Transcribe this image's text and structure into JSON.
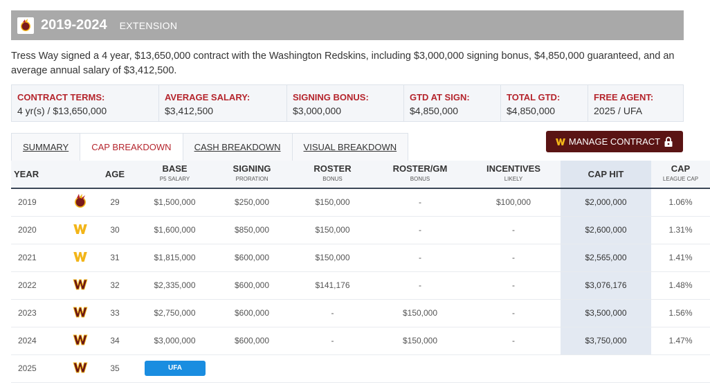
{
  "header": {
    "years": "2019-2024",
    "type": "EXTENSION"
  },
  "summary": "Tress Way signed a 4 year, $13,650,000 contract with the Washington Redskins, including $3,000,000 signing bonus, $4,850,000 guaranteed, and an average annual salary of $3,412,500.",
  "terms": [
    {
      "label": "CONTRACT TERMS:",
      "value": "4 yr(s) / $13,650,000"
    },
    {
      "label": "AVERAGE SALARY:",
      "value": "$3,412,500"
    },
    {
      "label": "SIGNING BONUS:",
      "value": "$3,000,000"
    },
    {
      "label": "GTD AT SIGN:",
      "value": "$4,850,000"
    },
    {
      "label": "TOTAL GTD:",
      "value": "$4,850,000"
    },
    {
      "label": "FREE AGENT:",
      "value": "2025 / UFA"
    }
  ],
  "tabs": [
    "SUMMARY",
    "CAP BREAKDOWN",
    "CASH BREAKDOWN",
    "VISUAL BREAKDOWN"
  ],
  "manage_button": "MANAGE CONTRACT",
  "columns": {
    "year": "YEAR",
    "age": "AGE",
    "base": "BASE",
    "base_sub": "P5 SALARY",
    "signing": "SIGNING",
    "signing_sub": "PRORATION",
    "roster": "ROSTER",
    "roster_sub": "BONUS",
    "rostergm": "ROSTER/GM",
    "rostergm_sub": "BONUS",
    "incentives": "INCENTIVES",
    "incentives_sub": "LIKELY",
    "caphit": "CAP HIT",
    "cappct": "CAP",
    "cappct_sub": "LEAGUE CAP"
  },
  "rows": [
    {
      "year": "2019",
      "logo": "redskins-logo-icon",
      "age": "29",
      "base": "$1,500,000",
      "signing": "$250,000",
      "roster": "$150,000",
      "rostergm": "-",
      "incentives": "$100,000",
      "caphit": "$2,000,000",
      "cappct": "1.06%"
    },
    {
      "year": "2020",
      "logo": "w-logo-icon",
      "age": "30",
      "base": "$1,600,000",
      "signing": "$850,000",
      "roster": "$150,000",
      "rostergm": "-",
      "incentives": "-",
      "caphit": "$2,600,000",
      "cappct": "1.31%"
    },
    {
      "year": "2021",
      "logo": "w-logo-icon",
      "age": "31",
      "base": "$1,815,000",
      "signing": "$600,000",
      "roster": "$150,000",
      "rostergm": "-",
      "incentives": "-",
      "caphit": "$2,565,000",
      "cappct": "1.41%"
    },
    {
      "year": "2022",
      "logo": "commanders-logo-icon",
      "age": "32",
      "base": "$2,335,000",
      "signing": "$600,000",
      "roster": "$141,176",
      "rostergm": "-",
      "incentives": "-",
      "caphit": "$3,076,176",
      "cappct": "1.48%"
    },
    {
      "year": "2023",
      "logo": "commanders-logo-icon",
      "age": "33",
      "base": "$2,750,000",
      "signing": "$600,000",
      "roster": "-",
      "rostergm": "$150,000",
      "incentives": "-",
      "caphit": "$3,500,000",
      "cappct": "1.56%"
    },
    {
      "year": "2024",
      "logo": "commanders-logo-icon",
      "age": "34",
      "base": "$3,000,000",
      "signing": "$600,000",
      "roster": "-",
      "rostergm": "$150,000",
      "incentives": "-",
      "caphit": "$3,750,000",
      "cappct": "1.47%"
    }
  ],
  "ufa_row": {
    "year": "2025",
    "logo": "commanders-logo-icon",
    "age": "35",
    "badge": "UFA"
  }
}
